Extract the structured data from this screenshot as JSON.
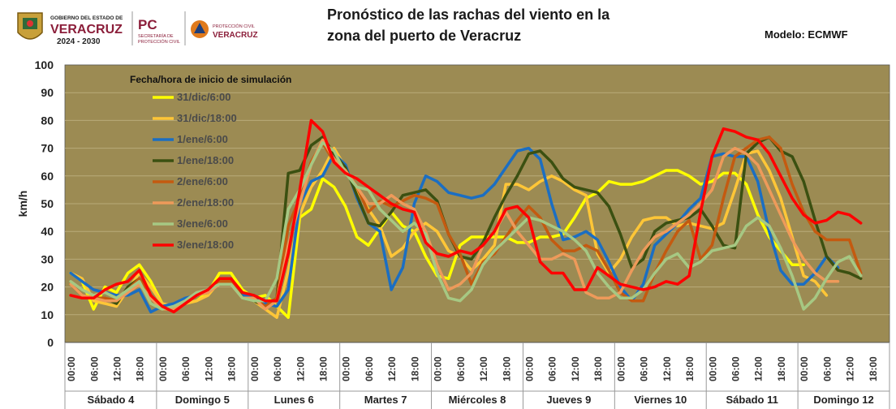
{
  "header": {
    "title_line1": "Pronóstico de las rachas del viento en la",
    "title_line2": "zona del puerto de Veracruz",
    "model_label": "Modelo: ECMWF",
    "logos": {
      "gov_small": "GOBIERNO DEL ESTADO DE",
      "gov_big": "VERACRUZ",
      "gov_years": "2024 - 2030",
      "pc_big": "PC",
      "pc_small1": "SECRETARÍA DE",
      "pc_small2": "PROTECCIÓN CIVIL",
      "pcv_small": "PROTECCIÓN CIVIL",
      "pcv_big": "VERACRUZ"
    }
  },
  "colors": {
    "plot_bg": "#9c8b53",
    "grid": "#b9ab7a",
    "gov_maroon": "#8b1e3a",
    "pc_orange": "#e07a1c"
  },
  "chart_data": {
    "type": "line",
    "ylabel": "km/h",
    "ylim": [
      0,
      100
    ],
    "yticks": [
      0,
      10,
      20,
      30,
      40,
      50,
      60,
      70,
      80,
      90,
      100
    ],
    "legend_title": "Fecha/hora de inicio de simulación",
    "legend_position": "top-left inside",
    "days": [
      "Sábado 4",
      "Domingo 5",
      "Lunes 6",
      "Martes 7",
      "Miércoles 8",
      "Jueves 9",
      "Viernes 10",
      "Sábado 11",
      "Domingo 12"
    ],
    "hour_labels": [
      "00:00",
      "06:00",
      "12:00",
      "18:00"
    ],
    "x_step_hours": 3,
    "x_start": "Sábado 4 00:00",
    "series": [
      {
        "name": "31/dic/6:00",
        "color": "#ffff00",
        "values": [
          25,
          22,
          12,
          20,
          18,
          25,
          28,
          22,
          14,
          13,
          14,
          15,
          18,
          25,
          25,
          19,
          16,
          17,
          13,
          9,
          45,
          48,
          59,
          56,
          49,
          38,
          35,
          41,
          47,
          42,
          40,
          31,
          24,
          23,
          35,
          38,
          38,
          38,
          38,
          36,
          36,
          38,
          38,
          39,
          45,
          52,
          54,
          58,
          57,
          57,
          58,
          60,
          62,
          62,
          60,
          57,
          58,
          61,
          61,
          57,
          46,
          38,
          33,
          28,
          28
        ]
      },
      {
        "name": "31/dic/18:00",
        "color": "#ffc637",
        "values": [
          25,
          23,
          15,
          14,
          13,
          19,
          25,
          20,
          14,
          13,
          14,
          15,
          17,
          22,
          22,
          18,
          15,
          12,
          9,
          26,
          46,
          56,
          62,
          70,
          63,
          55,
          48,
          42,
          31,
          34,
          40,
          43,
          40,
          33,
          31,
          26,
          30,
          35,
          57,
          57,
          55,
          58,
          60,
          58,
          55,
          53,
          32,
          25,
          30,
          38,
          44,
          45,
          45,
          42,
          43,
          42,
          41,
          43,
          55,
          68,
          69,
          62,
          52,
          38,
          24,
          22,
          17
        ]
      },
      {
        "name": "1/ene/6:00",
        "color": "#1b6ec2",
        "values": [
          25,
          22,
          19,
          18,
          17,
          17,
          19,
          11,
          13,
          14,
          16,
          17,
          19,
          22,
          22,
          17,
          17,
          14,
          13,
          19,
          50,
          58,
          60,
          68,
          64,
          52,
          43,
          40,
          19,
          27,
          50,
          60,
          58,
          54,
          53,
          52,
          53,
          57,
          63,
          69,
          70,
          66,
          50,
          37,
          38,
          40,
          37,
          29,
          20,
          15,
          21,
          35,
          39,
          43,
          48,
          52,
          67,
          68,
          67,
          67,
          58,
          40,
          26,
          21,
          21,
          25,
          31,
          27
        ]
      },
      {
        "name": "1/ene/18:00",
        "color": "#3b5011",
        "values": [
          21,
          17,
          16,
          16,
          14,
          20,
          23,
          17,
          12,
          12,
          14,
          17,
          18,
          22,
          23,
          16,
          15,
          13,
          16,
          61,
          62,
          71,
          74,
          68,
          63,
          53,
          43,
          42,
          47,
          53,
          54,
          55,
          51,
          39,
          31,
          30,
          36,
          45,
          53,
          60,
          68,
          69,
          65,
          59,
          56,
          55,
          54,
          49,
          39,
          27,
          30,
          40,
          43,
          44,
          45,
          48,
          42,
          35,
          34,
          68,
          72,
          74,
          69,
          67,
          58,
          44,
          31,
          26,
          25,
          23
        ]
      },
      {
        "name": "2/ene/6:00",
        "color": "#c45a10",
        "values": [
          21,
          17,
          16,
          16,
          15,
          19,
          23,
          16,
          12,
          12,
          14,
          17,
          18,
          22,
          22,
          16,
          16,
          13,
          16,
          42,
          52,
          65,
          72,
          65,
          62,
          56,
          47,
          51,
          49,
          51,
          53,
          52,
          50,
          39,
          32,
          21,
          29,
          32,
          38,
          44,
          49,
          45,
          37,
          33,
          33,
          35,
          33,
          26,
          18,
          15,
          15,
          25,
          33,
          40,
          44,
          30,
          35,
          52,
          67,
          70,
          73,
          74,
          70,
          57,
          47,
          40,
          37,
          37,
          37,
          25
        ]
      },
      {
        "name": "2/ene/18:00",
        "color": "#ee9a5a",
        "values": [
          21,
          17,
          16,
          15,
          15,
          18,
          21,
          16,
          12,
          12,
          14,
          17,
          18,
          21,
          21,
          16,
          16,
          12,
          15,
          35,
          50,
          64,
          73,
          66,
          62,
          56,
          50,
          50,
          53,
          50,
          48,
          40,
          28,
          19,
          21,
          25,
          35,
          40,
          47,
          40,
          35,
          30,
          30,
          32,
          30,
          18,
          16,
          16,
          18,
          26,
          33,
          38,
          40,
          43,
          46,
          50,
          55,
          67,
          70,
          68,
          64,
          55,
          46,
          37,
          30,
          25,
          22,
          22
        ]
      },
      {
        "name": "3/ene/6:00",
        "color": "#a6c883",
        "values": [
          22,
          19,
          17,
          18,
          16,
          19,
          22,
          14,
          12,
          13,
          15,
          18,
          19,
          21,
          21,
          16,
          15,
          15,
          23,
          48,
          55,
          64,
          72,
          69,
          61,
          56,
          55,
          48,
          44,
          40,
          43,
          39,
          25,
          16,
          15,
          19,
          28,
          33,
          37,
          41,
          45,
          44,
          42,
          40,
          37,
          33,
          25,
          20,
          16,
          16,
          19,
          25,
          30,
          32,
          27,
          29,
          33,
          34,
          35,
          42,
          45,
          42,
          34,
          24,
          12,
          16,
          23,
          29,
          31,
          24
        ]
      },
      {
        "name": "3/ene/18:00",
        "color": "#ff0000",
        "values": [
          17,
          16,
          16,
          19,
          21,
          22,
          26,
          17,
          13,
          11,
          14,
          17,
          19,
          23,
          23,
          18,
          17,
          15,
          15,
          32,
          55,
          80,
          76,
          65,
          61,
          59,
          56,
          53,
          50,
          48,
          47,
          36,
          32,
          31,
          33,
          32,
          35,
          40,
          48,
          49,
          45,
          29,
          25,
          25,
          19,
          19,
          27,
          24,
          21,
          20,
          19,
          20,
          22,
          21,
          24,
          47,
          67,
          77,
          76,
          74,
          73,
          68,
          60,
          52,
          46,
          43,
          44,
          47,
          46,
          43
        ]
      }
    ]
  }
}
